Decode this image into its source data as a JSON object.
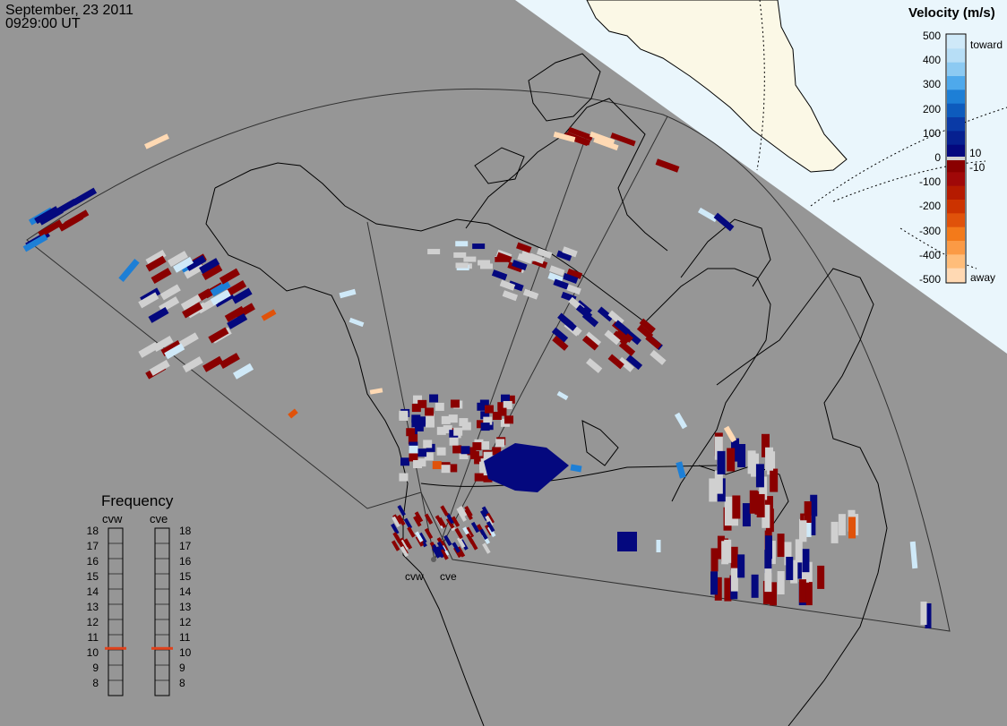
{
  "header": {
    "date": "September, 23 2011",
    "time": "0929:00 UT"
  },
  "colors": {
    "background": "#969696",
    "daylight": "#eaf6fc",
    "land_ice": "#fbf8e6",
    "toward_light": "#cfe9f8",
    "toward_mid": "#1d7fd6",
    "toward_dark": "#04087e",
    "away_dark": "#8a0000",
    "away_mid": "#e0520a",
    "away_light": "#ffd9b3",
    "ground_scatter": "#d0d0d0",
    "frequency_marker": "#e0421c"
  },
  "velocity_legend": {
    "title": "Velocity (m/s)",
    "ticks": [
      "500",
      "400",
      "300",
      "200",
      "100",
      "0",
      "-100",
      "-200",
      "-300",
      "-400",
      "-500"
    ],
    "toward_label": "toward",
    "away_label": "away",
    "threshold_pos": "10",
    "threshold_neg": "-10"
  },
  "frequency": {
    "title": "Frequency",
    "columns": [
      {
        "name": "cvw",
        "value_mhz": 10.6
      },
      {
        "name": "cve",
        "value_mhz": 10.6
      }
    ],
    "ticks": [
      "18",
      "17",
      "16",
      "15",
      "14",
      "13",
      "12",
      "11",
      "10",
      "9",
      "8"
    ]
  },
  "radars": [
    {
      "name": "cvw"
    },
    {
      "name": "cve"
    }
  ]
}
